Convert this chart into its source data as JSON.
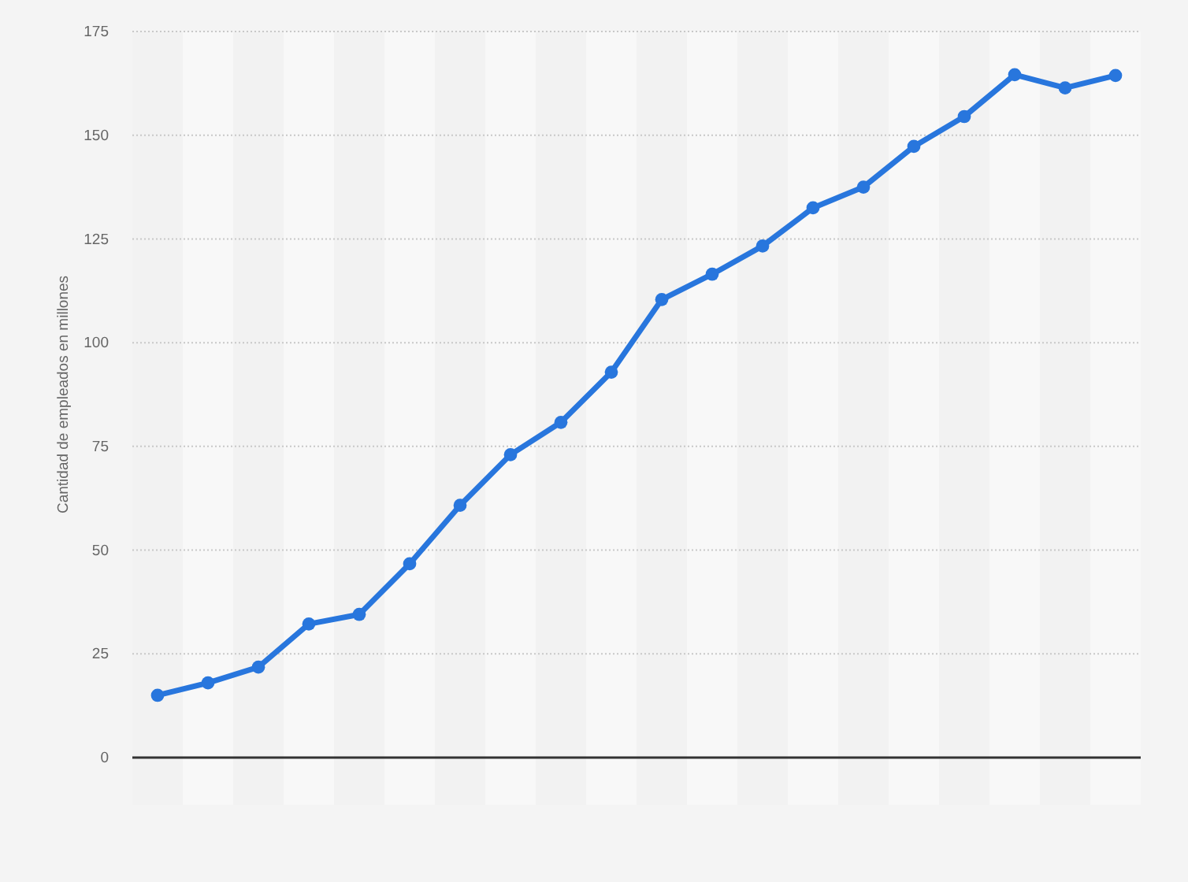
{
  "chart_data": {
    "type": "line",
    "ylabel": "Cantidad de empleados en millones",
    "categories": [
      null,
      null,
      null,
      null,
      null,
      null,
      null,
      null,
      null,
      null,
      null,
      null,
      null,
      null,
      null,
      null,
      null,
      null,
      null,
      null
    ],
    "series": [
      {
        "color": "#2876dd",
        "values": [
          15,
          18,
          21.8,
          32.2,
          34.5,
          46.7,
          60.8,
          73,
          80.8,
          92.9,
          110.4,
          116.5,
          123.3,
          132.5,
          137.5,
          147.3,
          154.5,
          164.6,
          161.4,
          164.4
        ]
      }
    ],
    "ylim": [
      0,
      175
    ],
    "yticks": [
      0,
      25,
      50,
      75,
      100,
      125,
      150,
      175
    ],
    "grid": "y",
    "tick_labels": "y",
    "marker": "circle",
    "line_style": "solid"
  }
}
